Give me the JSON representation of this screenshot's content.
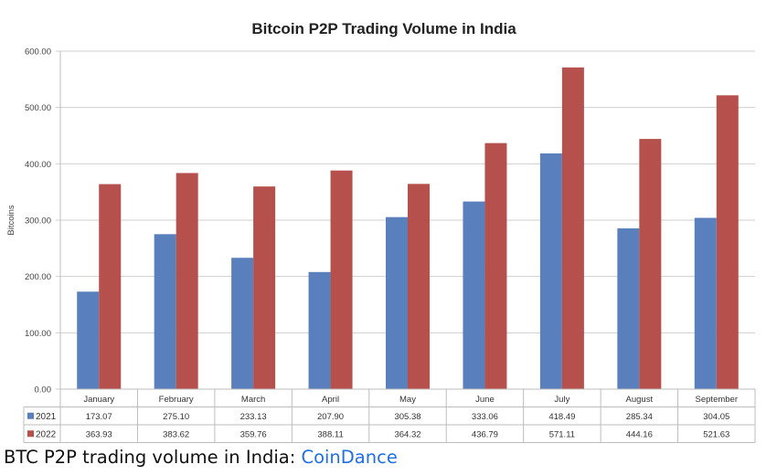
{
  "chart_data": {
    "type": "bar",
    "title": "Bitcoin P2P Trading Volume in India",
    "xlabel": "",
    "ylabel": "Bitcoins",
    "ylim": [
      0,
      600
    ],
    "yticks": [
      0,
      100,
      200,
      300,
      400,
      500,
      600
    ],
    "ytick_labels": [
      "0.00",
      "100.00",
      "200.00",
      "300.00",
      "400.00",
      "500.00",
      "600.00"
    ],
    "grid": true,
    "legend": "data-table-left",
    "categories": [
      "January",
      "February",
      "March",
      "April",
      "May",
      "June",
      "July",
      "August",
      "September"
    ],
    "series": [
      {
        "name": "2021",
        "color": "#5a7fbd",
        "values": [
          173.07,
          275.1,
          233.13,
          207.9,
          305.38,
          333.06,
          418.49,
          285.34,
          304.05
        ],
        "labels": [
          "173.07",
          "275.10",
          "233.13",
          "207.90",
          "305.38",
          "333.06",
          "418.49",
          "285.34",
          "304.05"
        ]
      },
      {
        "name": "2022",
        "color": "#b5504c",
        "values": [
          363.93,
          383.62,
          359.76,
          388.11,
          364.32,
          436.79,
          571.11,
          444.16,
          521.63
        ],
        "labels": [
          "363.93",
          "383.62",
          "359.76",
          "388.11",
          "364.32",
          "436.79",
          "571.11",
          "444.16",
          "521.63"
        ]
      }
    ]
  },
  "caption": {
    "text": "BTC P2P trading volume in India: ",
    "link_text": "CoinDance",
    "link_color": "#1f6fe5"
  }
}
